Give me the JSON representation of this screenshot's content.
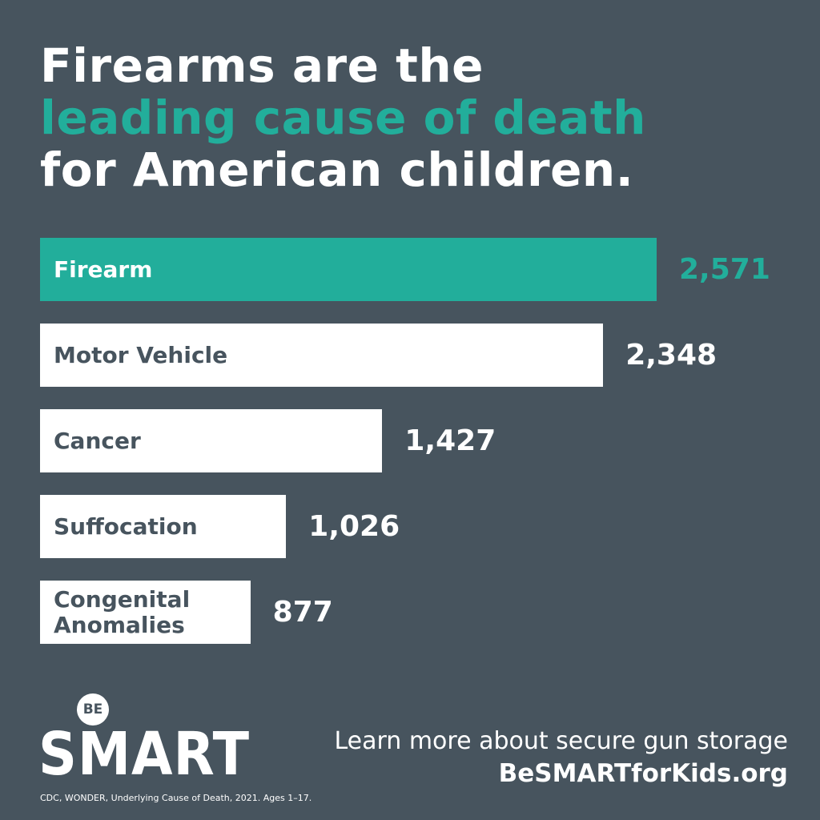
{
  "chart_data": {
    "type": "bar",
    "title": [
      "Firearms are the",
      "leading cause of death",
      "for American children."
    ],
    "title_highlight_color": "#22ae9b",
    "categories": [
      "Firearm",
      "Motor Vehicle",
      "Cancer",
      "Suffocation",
      "Congenital Anomalies"
    ],
    "values": [
      2571,
      2348,
      1427,
      1026,
      877
    ],
    "value_labels": [
      "2,571",
      "2,348",
      "1,427",
      "1,026",
      "877"
    ],
    "colors": [
      "#22ae9b",
      "#ffffff",
      "#ffffff",
      "#ffffff",
      "#ffffff"
    ],
    "source": "CDC, WONDER, Underlying Cause of Death, 2021. Ages 1–17."
  },
  "logo": {
    "top": "BE",
    "main": "SMART"
  },
  "cta": {
    "line1": "Learn more about secure gun storage",
    "line2": "BeSMARTforKids.org"
  }
}
